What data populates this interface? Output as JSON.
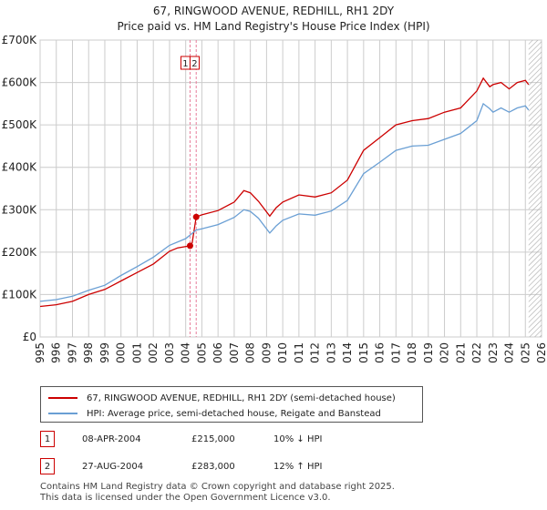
{
  "chart_data": {
    "type": "line",
    "title": "67, RINGWOOD AVENUE, REDHILL, RH1 2DY",
    "subtitle": "Price paid vs. HM Land Registry's House Price Index (HPI)",
    "xlim": [
      1995,
      2026
    ],
    "ylim": [
      0,
      700000
    ],
    "x_ticks": [
      1995,
      1996,
      1997,
      1998,
      1999,
      2000,
      2001,
      2002,
      2003,
      2004,
      2005,
      2006,
      2007,
      2008,
      2009,
      2010,
      2011,
      2012,
      2013,
      2014,
      2015,
      2016,
      2017,
      2018,
      2019,
      2020,
      2021,
      2022,
      2023,
      2024,
      2025,
      2026
    ],
    "y_ticks": [
      0,
      100000,
      200000,
      300000,
      400000,
      500000,
      600000,
      700000
    ],
    "y_tick_labels": [
      "£0",
      "£100K",
      "£200K",
      "£300K",
      "£400K",
      "£500K",
      "£600K",
      "£700K"
    ],
    "grid": true,
    "series": [
      {
        "name": "67, RINGWOOD AVENUE, REDHILL, RH1 2DY (semi-detached house)",
        "color": "#cc0000",
        "x": [
          1995.0,
          1996.0,
          1997.0,
          1998.0,
          1999.0,
          2000.0,
          2001.0,
          2002.0,
          2003.0,
          2003.5,
          2004.27,
          2004.4,
          2004.65,
          2005.0,
          2006.0,
          2007.0,
          2007.6,
          2008.0,
          2008.5,
          2009.2,
          2009.6,
          2010.0,
          2011.0,
          2012.0,
          2013.0,
          2014.0,
          2015.0,
          2016.0,
          2017.0,
          2018.0,
          2019.0,
          2020.0,
          2021.0,
          2022.0,
          2022.4,
          2022.8,
          2023.0,
          2023.5,
          2024.0,
          2024.5,
          2025.0,
          2025.2
        ],
        "y": [
          72000,
          76000,
          84000,
          100000,
          112000,
          132000,
          152000,
          172000,
          202000,
          210000,
          215000,
          222000,
          283000,
          288000,
          298000,
          318000,
          345000,
          340000,
          320000,
          285000,
          305000,
          318000,
          335000,
          330000,
          340000,
          370000,
          440000,
          470000,
          500000,
          510000,
          515000,
          530000,
          540000,
          580000,
          610000,
          590000,
          595000,
          600000,
          585000,
          600000,
          605000,
          595000
        ]
      },
      {
        "name": "HPI: Average price, semi-detached house, Reigate and Banstead",
        "color": "#6a9fd4",
        "x": [
          1995.0,
          1996.0,
          1997.0,
          1998.0,
          1999.0,
          2000.0,
          2001.0,
          2002.0,
          2003.0,
          2004.0,
          2004.65,
          2005.0,
          2006.0,
          2007.0,
          2007.6,
          2008.0,
          2008.5,
          2009.2,
          2009.6,
          2010.0,
          2011.0,
          2012.0,
          2013.0,
          2014.0,
          2015.0,
          2016.0,
          2017.0,
          2018.0,
          2019.0,
          2020.0,
          2021.0,
          2022.0,
          2022.4,
          2022.8,
          2023.0,
          2023.5,
          2024.0,
          2024.5,
          2025.0,
          2025.2
        ],
        "y": [
          84000,
          88000,
          96000,
          110000,
          122000,
          145000,
          166000,
          188000,
          216000,
          232000,
          252000,
          255000,
          265000,
          282000,
          300000,
          296000,
          280000,
          245000,
          262000,
          275000,
          290000,
          287000,
          297000,
          322000,
          385000,
          412000,
          440000,
          450000,
          452000,
          466000,
          480000,
          510000,
          550000,
          538000,
          530000,
          540000,
          530000,
          540000,
          545000,
          535000
        ]
      }
    ],
    "annotations": [
      {
        "label": "1",
        "x": 2004.27,
        "y": 215000
      },
      {
        "label": "2",
        "x": 2004.65,
        "y": 283000
      }
    ]
  },
  "legend": [
    {
      "label": "67, RINGWOOD AVENUE, REDHILL, RH1 2DY (semi-detached house)",
      "color": "#cc0000"
    },
    {
      "label": "HPI: Average price, semi-detached house, Reigate and Banstead",
      "color": "#6a9fd4"
    }
  ],
  "transactions": [
    {
      "num": "1",
      "date": "08-APR-2004",
      "price": "£215,000",
      "hpi": "10% ↓ HPI"
    },
    {
      "num": "2",
      "date": "27-AUG-2004",
      "price": "£283,000",
      "hpi": "12% ↑ HPI"
    }
  ],
  "footer": {
    "line1": "Contains HM Land Registry data © Crown copyright and database right 2025.",
    "line2": "This data is licensed under the Open Government Licence v3.0."
  }
}
